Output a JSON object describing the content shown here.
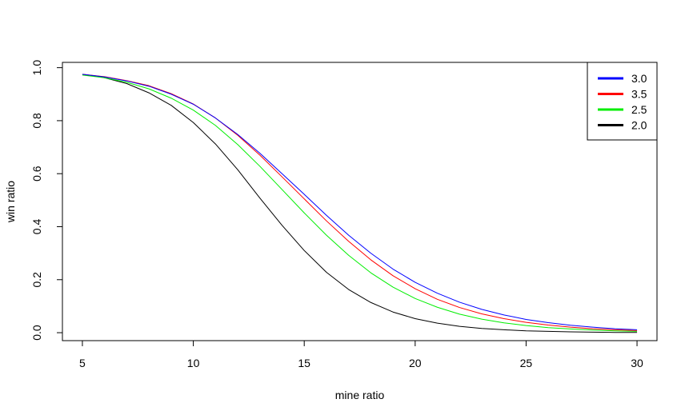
{
  "chart_data": {
    "type": "line",
    "title": "",
    "xlabel": "mine ratio",
    "ylabel": "win ratio",
    "xlim": [
      4.1,
      30.9
    ],
    "ylim": [
      -0.03,
      1.02
    ],
    "xticks": [
      5,
      10,
      15,
      20,
      25,
      30
    ],
    "yticks": [
      0.0,
      0.2,
      0.4,
      0.6,
      0.8,
      1.0
    ],
    "xtick_labels": [
      "5",
      "10",
      "15",
      "20",
      "25",
      "30"
    ],
    "ytick_labels": [
      "0.0",
      "0.2",
      "0.4",
      "0.6",
      "0.8",
      "1.0"
    ],
    "grid": false,
    "legend_position": "top-right",
    "x": [
      5,
      6,
      7,
      8,
      9,
      10,
      11,
      12,
      13,
      14,
      15,
      16,
      17,
      18,
      19,
      20,
      21,
      22,
      23,
      24,
      25,
      26,
      27,
      28,
      29,
      30
    ],
    "series": [
      {
        "name": "3.0",
        "color": "#0000ff",
        "values": [
          0.975,
          0.965,
          0.95,
          0.93,
          0.9,
          0.862,
          0.81,
          0.748,
          0.677,
          0.6,
          0.522,
          0.443,
          0.368,
          0.3,
          0.24,
          0.19,
          0.149,
          0.115,
          0.088,
          0.067,
          0.05,
          0.038,
          0.028,
          0.021,
          0.015,
          0.011
        ]
      },
      {
        "name": "3.5",
        "color": "#ff0000",
        "values": [
          0.975,
          0.966,
          0.951,
          0.932,
          0.902,
          0.863,
          0.81,
          0.745,
          0.67,
          0.588,
          0.505,
          0.422,
          0.345,
          0.275,
          0.215,
          0.166,
          0.126,
          0.095,
          0.071,
          0.053,
          0.039,
          0.029,
          0.021,
          0.015,
          0.011,
          0.008
        ]
      },
      {
        "name": "2.5",
        "color": "#00ee00",
        "values": [
          0.972,
          0.962,
          0.945,
          0.92,
          0.885,
          0.84,
          0.782,
          0.71,
          0.628,
          0.54,
          0.452,
          0.368,
          0.292,
          0.226,
          0.172,
          0.129,
          0.096,
          0.07,
          0.051,
          0.037,
          0.027,
          0.019,
          0.014,
          0.01,
          0.007,
          0.005
        ]
      },
      {
        "name": "2.0",
        "color": "#000000",
        "values": [
          0.975,
          0.962,
          0.94,
          0.905,
          0.858,
          0.793,
          0.712,
          0.615,
          0.508,
          0.405,
          0.31,
          0.228,
          0.163,
          0.114,
          0.078,
          0.053,
          0.036,
          0.024,
          0.016,
          0.011,
          0.007,
          0.005,
          0.003,
          0.002,
          0.001,
          0.001
        ]
      }
    ]
  }
}
